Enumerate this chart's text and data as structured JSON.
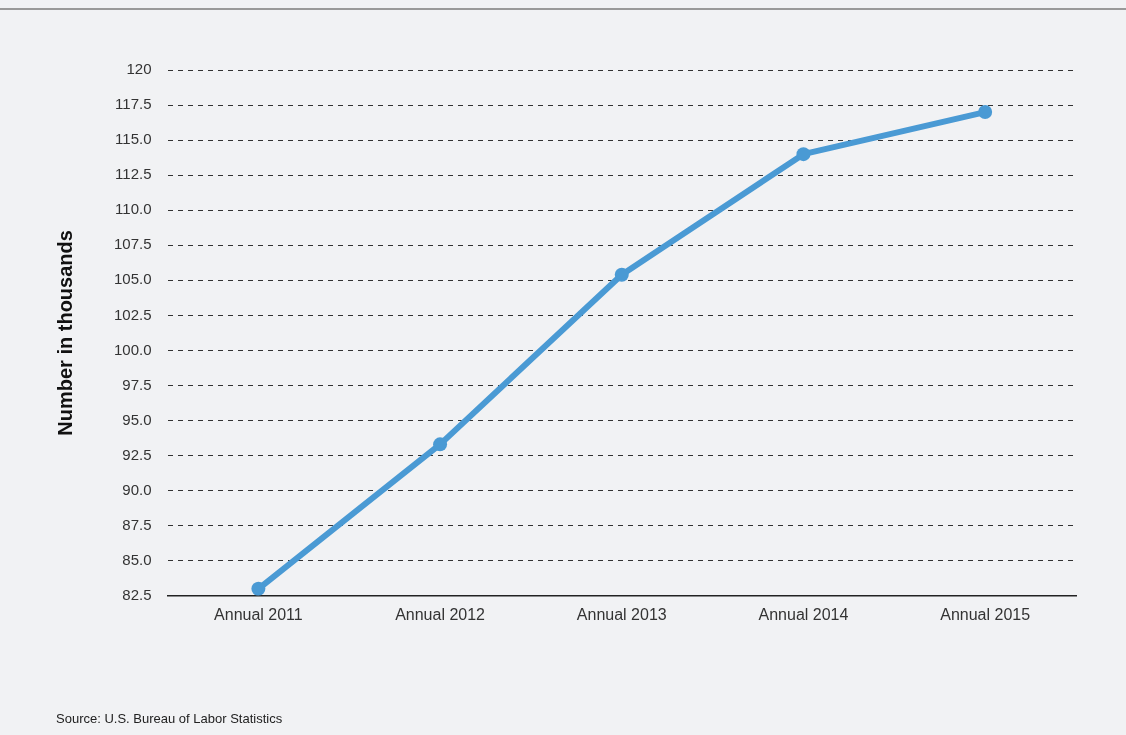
{
  "chart_data": {
    "type": "line",
    "ylabel": "Number in thousands",
    "categories": [
      "Annual 2011",
      "Annual 2012",
      "Annual 2013",
      "Annual 2014",
      "Annual 2015"
    ],
    "series": [
      {
        "color": "#4a9ad4",
        "values": [
          83.0,
          93.3,
          105.4,
          114.0,
          117.0
        ]
      }
    ],
    "ylim": [
      82.5,
      120
    ],
    "yticks": [
      82.5,
      {
        "value": 85,
        "label": "85.0"
      },
      87.5,
      {
        "value": 90,
        "label": "90.0"
      },
      92.5,
      {
        "value": 95,
        "label": "95.0"
      },
      97.5,
      {
        "value": 100,
        "label": "100.0"
      },
      102.5,
      {
        "value": 105,
        "label": "105.0"
      },
      107.5,
      {
        "value": 110,
        "label": "110.0"
      },
      112.5,
      {
        "value": 115,
        "label": "115.0"
      },
      117.5,
      120
    ],
    "grid": "y",
    "legend": false,
    "marker": "circle",
    "line_style": "solid",
    "annotations": [
      "Source: U.S. Bureau of Labor Statistics"
    ]
  }
}
